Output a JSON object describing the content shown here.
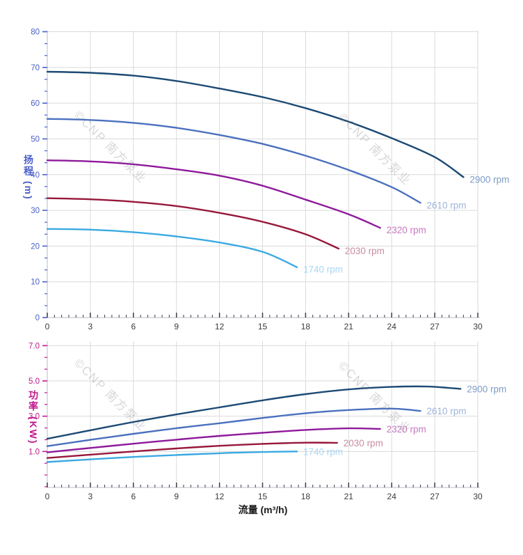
{
  "watermark": {
    "text": "©CNP 南方泵业"
  },
  "x_axis": {
    "label": "流量 (m³/h)",
    "min": 0,
    "max": 30,
    "major_ticks": [
      0,
      3,
      6,
      9,
      12,
      15,
      18,
      21,
      24,
      27,
      30
    ],
    "tick_labels": [
      "0",
      "3",
      "6",
      "9",
      "12",
      "15",
      "18",
      "21",
      "24",
      "27",
      "30"
    ],
    "minor_step": 0.5,
    "tick_color": "#3c3c3c"
  },
  "chart_data": [
    {
      "type": "line",
      "title": "",
      "ylabel": "扬程 (m)",
      "ylabel_color": "#4a5fc8",
      "xlabel": "",
      "ylim": [
        0,
        80
      ],
      "ytick_values": [
        0,
        10,
        20,
        30,
        40,
        50,
        60,
        70,
        80
      ],
      "ytick_labels": [
        "0",
        "10",
        "20",
        "30",
        "40",
        "50",
        "60",
        "70",
        "80"
      ],
      "grid": true,
      "legend_position": "labels-at-curve-ends",
      "series": [
        {
          "name": "2900 rpm",
          "color": "#1c4a74",
          "label_color": "#7d9cc8",
          "points": [
            [
              0,
              68.8
            ],
            [
              3,
              68.5
            ],
            [
              6,
              67.7
            ],
            [
              9,
              66.2
            ],
            [
              12,
              64.1
            ],
            [
              15,
              61.7
            ],
            [
              18,
              58.6
            ],
            [
              21,
              54.8
            ],
            [
              24,
              50.2
            ],
            [
              27,
              44.9
            ],
            [
              29,
              39.3
            ]
          ]
        },
        {
          "name": "2610 rpm",
          "color": "#4a70be",
          "label_color": "#9eb3da",
          "points": [
            [
              0,
              55.6
            ],
            [
              3,
              55.3
            ],
            [
              6,
              54.5
            ],
            [
              9,
              53.1
            ],
            [
              12,
              51.1
            ],
            [
              15,
              48.6
            ],
            [
              18,
              45.3
            ],
            [
              21,
              41.3
            ],
            [
              24,
              36.5
            ],
            [
              26,
              32.1
            ]
          ]
        },
        {
          "name": "2320 rpm",
          "color": "#8e199b",
          "label_color": "#c678c0",
          "points": [
            [
              0,
              44.0
            ],
            [
              3,
              43.7
            ],
            [
              6,
              42.9
            ],
            [
              9,
              41.5
            ],
            [
              12,
              39.7
            ],
            [
              15,
              36.9
            ],
            [
              18,
              33.0
            ],
            [
              21,
              28.9
            ],
            [
              23.2,
              25.1
            ]
          ]
        },
        {
          "name": "2030 rpm",
          "color": "#97173b",
          "label_color": "#c88e9f",
          "points": [
            [
              0,
              33.4
            ],
            [
              3,
              33.1
            ],
            [
              6,
              32.4
            ],
            [
              9,
              31.2
            ],
            [
              12,
              29.3
            ],
            [
              15,
              26.8
            ],
            [
              18,
              23.3
            ],
            [
              20.3,
              19.3
            ]
          ]
        },
        {
          "name": "1740 rpm",
          "color": "#3aa9e2",
          "label_color": "#a9d7f2",
          "points": [
            [
              0,
              24.8
            ],
            [
              3,
              24.6
            ],
            [
              6,
              23.9
            ],
            [
              9,
              22.7
            ],
            [
              12,
              21.0
            ],
            [
              15,
              18.4
            ],
            [
              17.4,
              14.1
            ]
          ]
        }
      ]
    },
    {
      "type": "line",
      "title": "",
      "ylabel": "功率 (KW)",
      "ylabel_color": "#c0188c",
      "xlabel": "流量 (m³/h)",
      "ylim": [
        -1,
        7
      ],
      "ytick_values": [
        1,
        3,
        5,
        7
      ],
      "ytick_labels": [
        "1.0",
        "3.0",
        "5.0",
        "7.0"
      ],
      "grid": true,
      "legend_position": "labels-at-curve-ends",
      "series": [
        {
          "name": "2900 rpm",
          "color": "#1c4a74",
          "label_color": "#7d9cc8",
          "points": [
            [
              0,
              1.72
            ],
            [
              3,
              2.2
            ],
            [
              6,
              2.67
            ],
            [
              9,
              3.1
            ],
            [
              12,
              3.5
            ],
            [
              15,
              3.9
            ],
            [
              18,
              4.25
            ],
            [
              21,
              4.52
            ],
            [
              24,
              4.66
            ],
            [
              26.5,
              4.68
            ],
            [
              28.8,
              4.55
            ]
          ]
        },
        {
          "name": "2610 rpm",
          "color": "#4a70be",
          "label_color": "#9eb3da",
          "points": [
            [
              0,
              1.3
            ],
            [
              3,
              1.66
            ],
            [
              6,
              2.0
            ],
            [
              9,
              2.32
            ],
            [
              12,
              2.6
            ],
            [
              15,
              2.9
            ],
            [
              18,
              3.17
            ],
            [
              21,
              3.35
            ],
            [
              24,
              3.43
            ],
            [
              26,
              3.3
            ]
          ]
        },
        {
          "name": "2320 rpm",
          "color": "#8e199b",
          "label_color": "#c678c0",
          "points": [
            [
              0,
              0.95
            ],
            [
              3,
              1.2
            ],
            [
              6,
              1.44
            ],
            [
              9,
              1.67
            ],
            [
              12,
              1.88
            ],
            [
              15,
              2.06
            ],
            [
              18,
              2.22
            ],
            [
              21,
              2.31
            ],
            [
              23.2,
              2.28
            ]
          ]
        },
        {
          "name": "2030 rpm",
          "color": "#97173b",
          "label_color": "#c88e9f",
          "points": [
            [
              0,
              0.63
            ],
            [
              3,
              0.82
            ],
            [
              6,
              1.0
            ],
            [
              9,
              1.17
            ],
            [
              12,
              1.32
            ],
            [
              15,
              1.43
            ],
            [
              18,
              1.5
            ],
            [
              20.2,
              1.49
            ]
          ]
        },
        {
          "name": "1740 rpm",
          "color": "#3aa9e2",
          "label_color": "#a9d7f2",
          "points": [
            [
              0,
              0.4
            ],
            [
              3,
              0.55
            ],
            [
              6,
              0.69
            ],
            [
              9,
              0.8
            ],
            [
              12,
              0.9
            ],
            [
              15,
              0.97
            ],
            [
              17.4,
              1.0
            ]
          ]
        }
      ]
    }
  ]
}
